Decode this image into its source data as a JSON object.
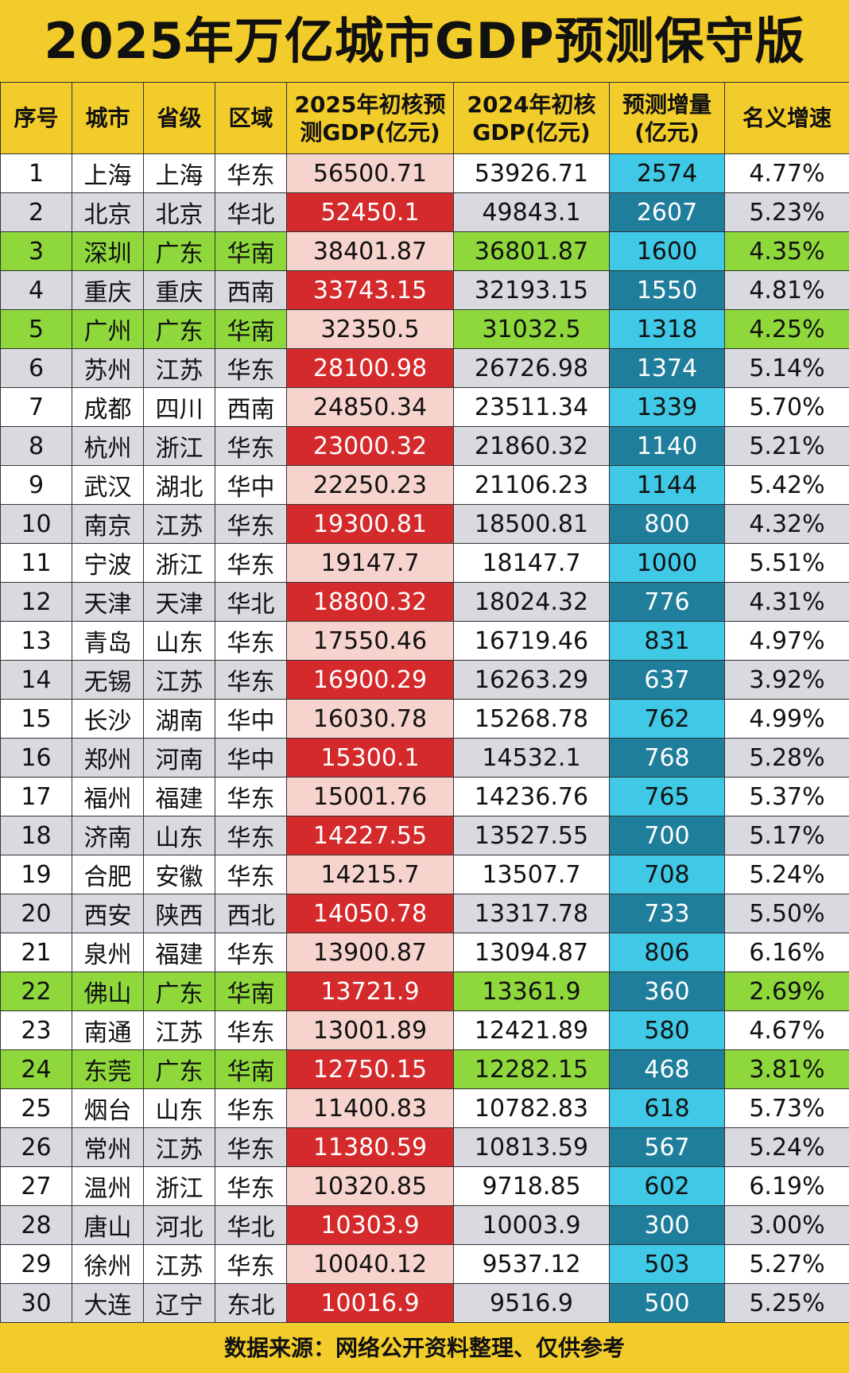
{
  "title": "2025年万亿城市GDP预测保守版",
  "headers": [
    "序号",
    "城市",
    "省级",
    "区域",
    "2025年初核预测GDP(亿元)",
    "2024年初核GDP(亿元)",
    "预测增量(亿元)",
    "名义增速"
  ],
  "rows": [
    [
      "1",
      "上海",
      "上海",
      "华东",
      "56500.71",
      "53926.71",
      "2574",
      "4.77%"
    ],
    [
      "2",
      "北京",
      "北京",
      "华北",
      "52450.1",
      "49843.1",
      "2607",
      "5.23%"
    ],
    [
      "3",
      "深圳",
      "广东",
      "华南",
      "38401.87",
      "36801.87",
      "1600",
      "4.35%"
    ],
    [
      "4",
      "重庆",
      "重庆",
      "西南",
      "33743.15",
      "32193.15",
      "1550",
      "4.81%"
    ],
    [
      "5",
      "广州",
      "广东",
      "华南",
      "32350.5",
      "31032.5",
      "1318",
      "4.25%"
    ],
    [
      "6",
      "苏州",
      "江苏",
      "华东",
      "28100.98",
      "26726.98",
      "1374",
      "5.14%"
    ],
    [
      "7",
      "成都",
      "四川",
      "西南",
      "24850.34",
      "23511.34",
      "1339",
      "5.70%"
    ],
    [
      "8",
      "杭州",
      "浙江",
      "华东",
      "23000.32",
      "21860.32",
      "1140",
      "5.21%"
    ],
    [
      "9",
      "武汉",
      "湖北",
      "华中",
      "22250.23",
      "21106.23",
      "1144",
      "5.42%"
    ],
    [
      "10",
      "南京",
      "江苏",
      "华东",
      "19300.81",
      "18500.81",
      "800",
      "4.32%"
    ],
    [
      "11",
      "宁波",
      "浙江",
      "华东",
      "19147.7",
      "18147.7",
      "1000",
      "5.51%"
    ],
    [
      "12",
      "天津",
      "天津",
      "华北",
      "18800.32",
      "18024.32",
      "776",
      "4.31%"
    ],
    [
      "13",
      "青岛",
      "山东",
      "华东",
      "17550.46",
      "16719.46",
      "831",
      "4.97%"
    ],
    [
      "14",
      "无锡",
      "江苏",
      "华东",
      "16900.29",
      "16263.29",
      "637",
      "3.92%"
    ],
    [
      "15",
      "长沙",
      "湖南",
      "华中",
      "16030.78",
      "15268.78",
      "762",
      "4.99%"
    ],
    [
      "16",
      "郑州",
      "河南",
      "华中",
      "15300.1",
      "14532.1",
      "768",
      "5.28%"
    ],
    [
      "17",
      "福州",
      "福建",
      "华东",
      "15001.76",
      "14236.76",
      "765",
      "5.37%"
    ],
    [
      "18",
      "济南",
      "山东",
      "华东",
      "14227.55",
      "13527.55",
      "700",
      "5.17%"
    ],
    [
      "19",
      "合肥",
      "安徽",
      "华东",
      "14215.7",
      "13507.7",
      "708",
      "5.24%"
    ],
    [
      "20",
      "西安",
      "陕西",
      "西北",
      "14050.78",
      "13317.78",
      "733",
      "5.50%"
    ],
    [
      "21",
      "泉州",
      "福建",
      "华东",
      "13900.87",
      "13094.87",
      "806",
      "6.16%"
    ],
    [
      "22",
      "佛山",
      "广东",
      "华南",
      "13721.9",
      "13361.9",
      "360",
      "2.69%"
    ],
    [
      "23",
      "南通",
      "江苏",
      "华东",
      "13001.89",
      "12421.89",
      "580",
      "4.67%"
    ],
    [
      "24",
      "东莞",
      "广东",
      "华南",
      "12750.15",
      "12282.15",
      "468",
      "3.81%"
    ],
    [
      "25",
      "烟台",
      "山东",
      "华东",
      "11400.83",
      "10782.83",
      "618",
      "5.73%"
    ],
    [
      "26",
      "常州",
      "江苏",
      "华东",
      "11380.59",
      "10813.59",
      "567",
      "5.24%"
    ],
    [
      "27",
      "温州",
      "浙江",
      "华东",
      "10320.85",
      "9718.85",
      "602",
      "6.19%"
    ],
    [
      "28",
      "唐山",
      "河北",
      "华北",
      "10303.9",
      "10003.9",
      "300",
      "3.00%"
    ],
    [
      "29",
      "徐州",
      "江苏",
      "华东",
      "10040.12",
      "9537.12",
      "503",
      "5.27%"
    ],
    [
      "30",
      "大连",
      "辽宁",
      "东北",
      "10016.9",
      "9516.9",
      "500",
      "5.25%"
    ]
  ],
  "highlight_province": "广东",
  "colors": {
    "background": "#f2cc2a",
    "row_odd": "#ffffff",
    "row_even": "#d8dadf",
    "guangdong_highlight": "#8fd83c",
    "gdp2025_light": "#f7d3cd",
    "gdp2025_dark": "#d52a2b",
    "increment_light": "#3fc9e6",
    "increment_dark": "#1f7e9b"
  },
  "footer": "数据来源：网络公开资料整理、仅供参考"
}
